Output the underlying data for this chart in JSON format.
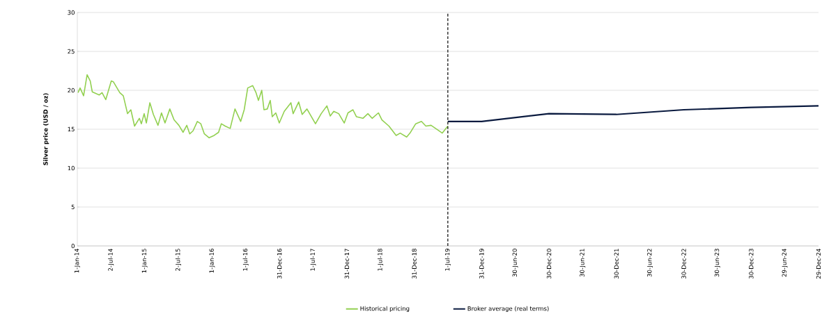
{
  "chart_data": {
    "type": "line",
    "ylabel": "Silver price (USD / oz)",
    "xlim": [
      "2014-01-01",
      "2024-12-29"
    ],
    "ylim": [
      0,
      30
    ],
    "yticks": [
      0,
      5,
      10,
      15,
      20,
      25,
      30
    ],
    "xticks": [
      {
        "value": "2014-01-01",
        "label": "1-Jan-14"
      },
      {
        "value": "2014-07-02",
        "label": "2-Jul-14"
      },
      {
        "value": "2015-01-01",
        "label": "1-Jan-15"
      },
      {
        "value": "2015-07-02",
        "label": "2-Jul-15"
      },
      {
        "value": "2016-01-01",
        "label": "1-Jan-16"
      },
      {
        "value": "2016-07-01",
        "label": "1-Jul-16"
      },
      {
        "value": "2016-12-31",
        "label": "31-Dec-16"
      },
      {
        "value": "2017-07-01",
        "label": "1-Jul-17"
      },
      {
        "value": "2017-12-31",
        "label": "31-Dec-17"
      },
      {
        "value": "2018-07-01",
        "label": "1-Jul-18"
      },
      {
        "value": "2018-12-31",
        "label": "31-Dec-18"
      },
      {
        "value": "2019-07-01",
        "label": "1-Jul-19"
      },
      {
        "value": "2019-12-31",
        "label": "31-Dec-19"
      },
      {
        "value": "2020-06-30",
        "label": "30-Jun-20"
      },
      {
        "value": "2020-12-30",
        "label": "30-Dec-20"
      },
      {
        "value": "2021-06-30",
        "label": "30-Jun-21"
      },
      {
        "value": "2021-12-30",
        "label": "30-Dec-21"
      },
      {
        "value": "2022-06-30",
        "label": "30-Jun-22"
      },
      {
        "value": "2022-12-30",
        "label": "30-Dec-22"
      },
      {
        "value": "2023-06-30",
        "label": "30-Jun-23"
      },
      {
        "value": "2023-12-30",
        "label": "30-Dec-23"
      },
      {
        "value": "2024-06-29",
        "label": "29-Jun-24"
      },
      {
        "value": "2024-12-29",
        "label": "29-Dec-24"
      }
    ],
    "grid": "y",
    "legend": "bottom",
    "ref_lines": [
      {
        "axis": "x",
        "value": "2019-07-01",
        "color": "#000000",
        "line_style": "dashed"
      }
    ],
    "series": [
      {
        "name": "Historical pricing",
        "color": "#92d050",
        "x": [
          "2014-01-05",
          "2014-01-16",
          "2014-02-04",
          "2014-02-23",
          "2014-03-12",
          "2014-03-23",
          "2014-04-30",
          "2014-05-15",
          "2014-06-04",
          "2014-07-04",
          "2014-07-15",
          "2014-08-19",
          "2014-09-07",
          "2014-09-30",
          "2014-10-18",
          "2014-11-07",
          "2014-12-03",
          "2014-12-14",
          "2014-12-29",
          "2015-01-10",
          "2015-01-29",
          "2015-02-17",
          "2015-03-14",
          "2015-04-02",
          "2015-04-21",
          "2015-05-17",
          "2015-06-09",
          "2015-07-05",
          "2015-07-28",
          "2015-08-17",
          "2015-09-02",
          "2015-09-20",
          "2015-10-13",
          "2015-11-01",
          "2015-11-20",
          "2015-12-16",
          "2016-01-12",
          "2016-02-05",
          "2016-02-20",
          "2016-03-12",
          "2016-04-08",
          "2016-05-04",
          "2016-06-04",
          "2016-06-23",
          "2016-07-12",
          "2016-08-08",
          "2016-08-26",
          "2016-09-08",
          "2016-09-26",
          "2016-10-08",
          "2016-10-26",
          "2016-11-11",
          "2016-11-22",
          "2016-12-11",
          "2016-12-30",
          "2017-01-26",
          "2017-03-03",
          "2017-03-15",
          "2017-04-14",
          "2017-05-03",
          "2017-05-29",
          "2017-07-14",
          "2017-08-14",
          "2017-09-14",
          "2017-10-02",
          "2017-10-21",
          "2017-11-17",
          "2017-12-17",
          "2018-01-06",
          "2018-02-02",
          "2018-02-21",
          "2018-03-28",
          "2018-04-24",
          "2018-05-17",
          "2018-06-20",
          "2018-07-09",
          "2018-08-16",
          "2018-09-24",
          "2018-10-16",
          "2018-11-20",
          "2018-12-08",
          "2019-01-08",
          "2019-02-08",
          "2019-03-04",
          "2019-04-01",
          "2019-05-08",
          "2019-06-01",
          "2019-07-01"
        ],
        "values": [
          19.7,
          20.3,
          19.3,
          22.0,
          21.2,
          19.8,
          19.4,
          19.7,
          18.8,
          21.2,
          21.1,
          19.7,
          19.3,
          17.0,
          17.5,
          15.4,
          16.4,
          15.7,
          17.0,
          15.8,
          18.4,
          16.9,
          15.5,
          17.1,
          15.8,
          17.6,
          16.2,
          15.5,
          14.6,
          15.5,
          14.4,
          14.8,
          16.0,
          15.7,
          14.4,
          13.9,
          14.2,
          14.6,
          15.7,
          15.4,
          15.1,
          17.6,
          16.0,
          17.5,
          20.3,
          20.6,
          19.7,
          18.7,
          20.0,
          17.5,
          17.6,
          18.7,
          16.6,
          17.1,
          15.8,
          17.3,
          18.4,
          17.0,
          18.5,
          16.9,
          17.6,
          15.7,
          17.0,
          18.0,
          16.7,
          17.3,
          17.0,
          15.8,
          17.1,
          17.5,
          16.6,
          16.4,
          17.0,
          16.4,
          17.1,
          16.2,
          15.4,
          14.2,
          14.5,
          14.0,
          14.5,
          15.7,
          16.0,
          15.4,
          15.5,
          14.9,
          14.5,
          15.4
        ]
      },
      {
        "name": "Broker average (real terms)",
        "color": "#0a1a3f",
        "x": [
          "2019-07-01",
          "2019-12-31",
          "2020-12-30",
          "2021-12-30",
          "2022-12-30",
          "2023-12-30",
          "2024-12-29"
        ],
        "values": [
          16.0,
          16.0,
          17.0,
          16.9,
          17.5,
          17.8,
          18.0
        ]
      }
    ]
  }
}
